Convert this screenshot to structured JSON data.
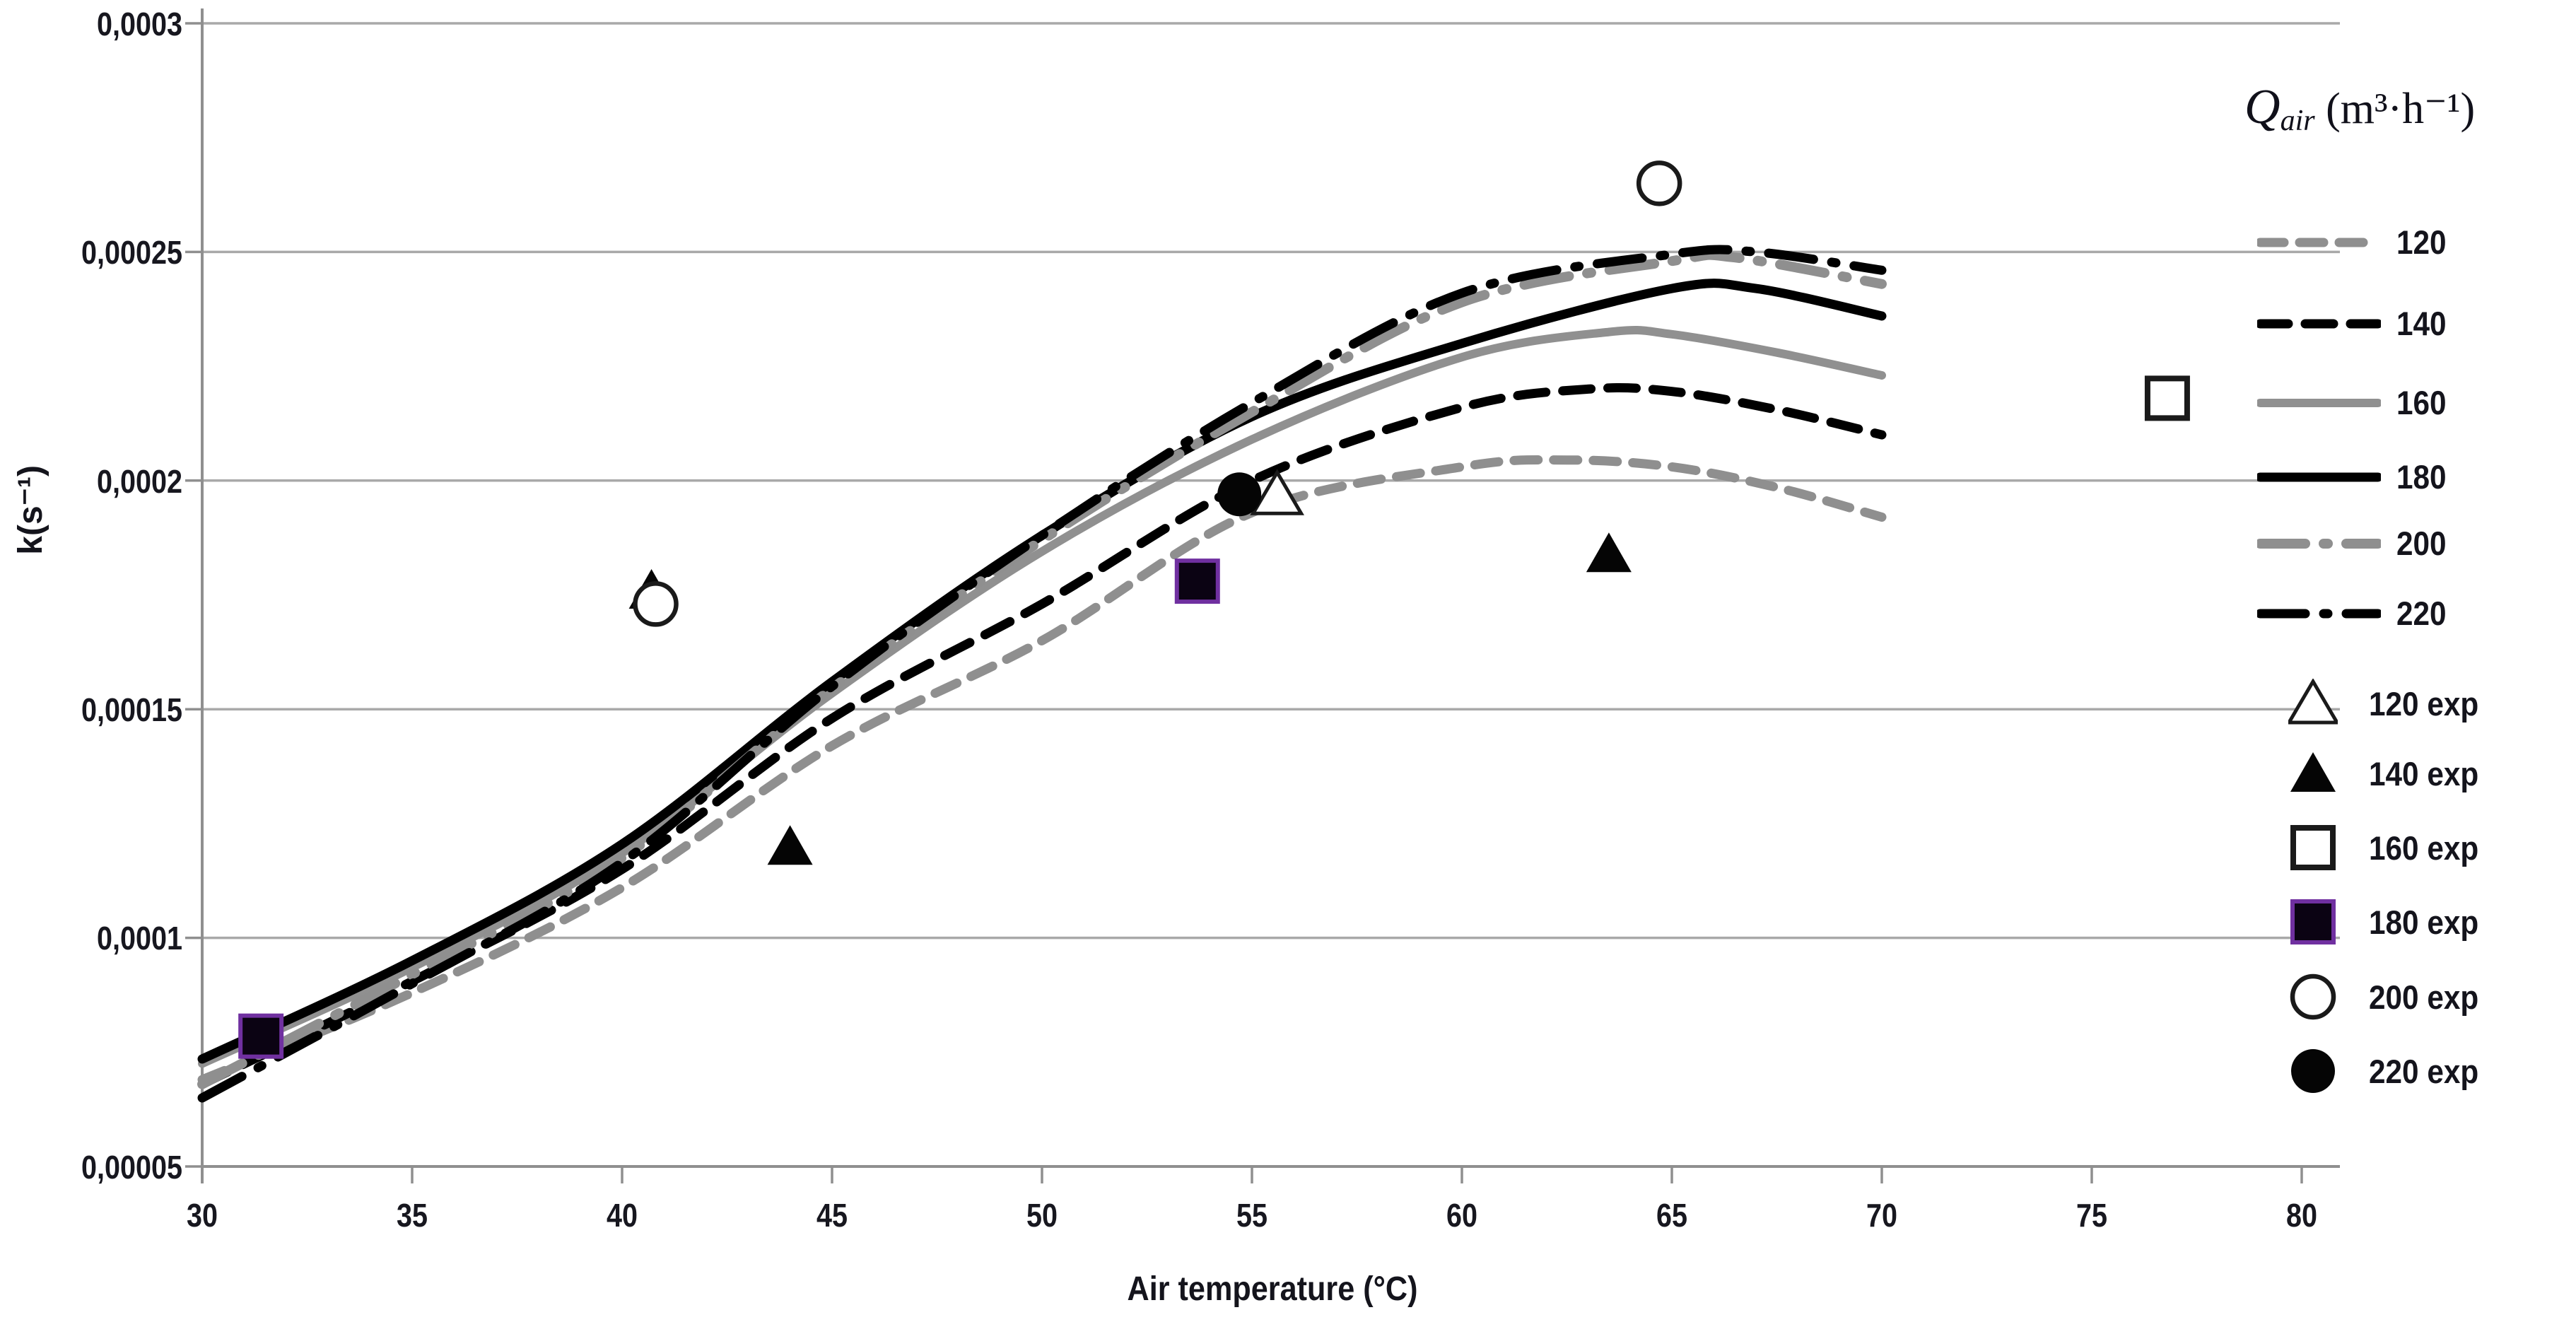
{
  "chart_data": {
    "type": "line",
    "title": "",
    "xlabel": "Air temperature (°C)",
    "ylabel": "k(s⁻¹)",
    "xlim": [
      30,
      80
    ],
    "ylim": [
      5e-05,
      0.0003
    ],
    "grid": true,
    "legend_position": "right",
    "x_ticks": {
      "values": [
        30,
        35,
        40,
        45,
        50,
        55,
        60,
        65,
        70,
        75,
        80
      ],
      "labels": [
        "30",
        "35",
        "40",
        "45",
        "50",
        "55",
        "60",
        "65",
        "70",
        "75",
        "80"
      ]
    },
    "y_ticks": {
      "values": [
        0.0003,
        0.00025,
        0.0002,
        0.00015,
        0.0001,
        5e-05
      ],
      "labels": [
        "0,0003",
        "0,00025",
        "0,0002",
        "0,00015",
        "0,0001",
        "0,00005"
      ]
    },
    "series": [
      {
        "name": "120",
        "color": "#8f8f8f",
        "dash": "34 22",
        "width": 13,
        "x": [
          30,
          35,
          40,
          45,
          50,
          55,
          60,
          62.5,
          65,
          67.5,
          70
        ],
        "y": [
          6.9e-05,
          8.8e-05,
          0.000111,
          0.000142,
          0.000165,
          0.000193,
          0.000203,
          0.0002045,
          0.000203,
          0.0001985,
          0.000192
        ]
      },
      {
        "name": "140",
        "color": "#000000",
        "dash": "40 24",
        "width": 13,
        "x": [
          30,
          35,
          40,
          45,
          50,
          55,
          60,
          63,
          65,
          67.5,
          70
        ],
        "y": [
          6.8e-05,
          9.05e-05,
          0.000115,
          0.000148,
          0.000173,
          0.0002,
          0.000216,
          0.00022,
          0.0002195,
          0.0002155,
          0.00021
        ]
      },
      {
        "name": "160",
        "color": "#909090",
        "dash": null,
        "width": 12,
        "x": [
          30,
          35,
          40,
          45,
          50,
          55,
          60,
          63.5,
          65,
          67.5,
          70
        ],
        "y": [
          7.25e-05,
          9.35e-05,
          0.0001185,
          0.0001535,
          0.0001845,
          0.000209,
          0.000227,
          0.0002325,
          0.000232,
          0.000228,
          0.000223
        ]
      },
      {
        "name": "180",
        "color": "#000000",
        "dash": null,
        "width": 13,
        "x": [
          30,
          35,
          40,
          45,
          50,
          55,
          60,
          65,
          67,
          70
        ],
        "y": [
          7.35e-05,
          9.5e-05,
          0.0001205,
          0.000156,
          0.000188,
          0.000214,
          0.00023,
          0.000242,
          0.000242,
          0.000236
        ]
      },
      {
        "name": "200",
        "color": "#8f8f8f",
        "dash": "64 26 6 26",
        "width": 14,
        "x": [
          30,
          35,
          40,
          45,
          50,
          55,
          60,
          65,
          66.5,
          70
        ],
        "y": [
          6.8e-05,
          9.2e-05,
          0.0001175,
          0.0001545,
          0.000187,
          0.000215,
          0.000239,
          0.000248,
          0.0002488,
          0.000243
        ]
      },
      {
        "name": "220",
        "color": "#000000",
        "dash": "64 26 6 26",
        "width": 13,
        "x": [
          30,
          35,
          40,
          45,
          50,
          55,
          60,
          65,
          67,
          70
        ],
        "y": [
          6.5e-05,
          9e-05,
          0.0001165,
          0.000155,
          0.000188,
          0.000217,
          0.000241,
          0.0002495,
          0.00025,
          0.000246
        ]
      }
    ],
    "exp_series": [
      {
        "name": "120 exp",
        "marker": "triangle-open",
        "points": [
          [
            55.6,
            0.000197
          ]
        ]
      },
      {
        "name": "140 exp",
        "marker": "triangle-filled",
        "points": [
          [
            40.7,
            0.000176
          ],
          [
            44.0,
            0.00012
          ],
          [
            63.5,
            0.000184
          ]
        ]
      },
      {
        "name": "160 exp",
        "marker": "square-open",
        "points": [
          [
            76.8,
            0.000218
          ]
        ]
      },
      {
        "name": "180 exp",
        "marker": "square-filled",
        "points": [
          [
            31.4,
            7.85e-05
          ],
          [
            53.7,
            0.000178
          ]
        ]
      },
      {
        "name": "200 exp",
        "marker": "circle-open",
        "points": [
          [
            40.8,
            0.000173
          ],
          [
            64.7,
            0.000265
          ]
        ]
      },
      {
        "name": "220 exp",
        "marker": "circle-filled",
        "points": [
          [
            54.7,
            0.000197
          ]
        ]
      }
    ],
    "marker_colors": {
      "stroke": "#1a1a1a",
      "fill_black": "#050505",
      "fill_white": "#ffffff",
      "purple_edge": "#7030a0"
    }
  },
  "legend": {
    "title": {
      "q": "Q",
      "sub": "air",
      "rest": " (m³·h⁻¹)"
    },
    "entries": [
      {
        "label": "120",
        "kind": "line",
        "ref": 0
      },
      {
        "label": "140",
        "kind": "line",
        "ref": 1
      },
      {
        "label": "160",
        "kind": "line",
        "ref": 2
      },
      {
        "label": "180",
        "kind": "line",
        "ref": 3
      },
      {
        "label": "200",
        "kind": "line",
        "ref": 4
      },
      {
        "label": "220",
        "kind": "line",
        "ref": 5
      },
      {
        "label": "120 exp",
        "kind": "marker",
        "marker": "triangle-open"
      },
      {
        "label": "140 exp",
        "kind": "marker",
        "marker": "triangle-filled"
      },
      {
        "label": "160 exp",
        "kind": "marker",
        "marker": "square-open"
      },
      {
        "label": "180 exp",
        "kind": "marker",
        "marker": "square-filled"
      },
      {
        "label": "200 exp",
        "kind": "marker",
        "marker": "circle-open"
      },
      {
        "label": "220 exp",
        "kind": "marker",
        "marker": "circle-filled"
      }
    ]
  }
}
